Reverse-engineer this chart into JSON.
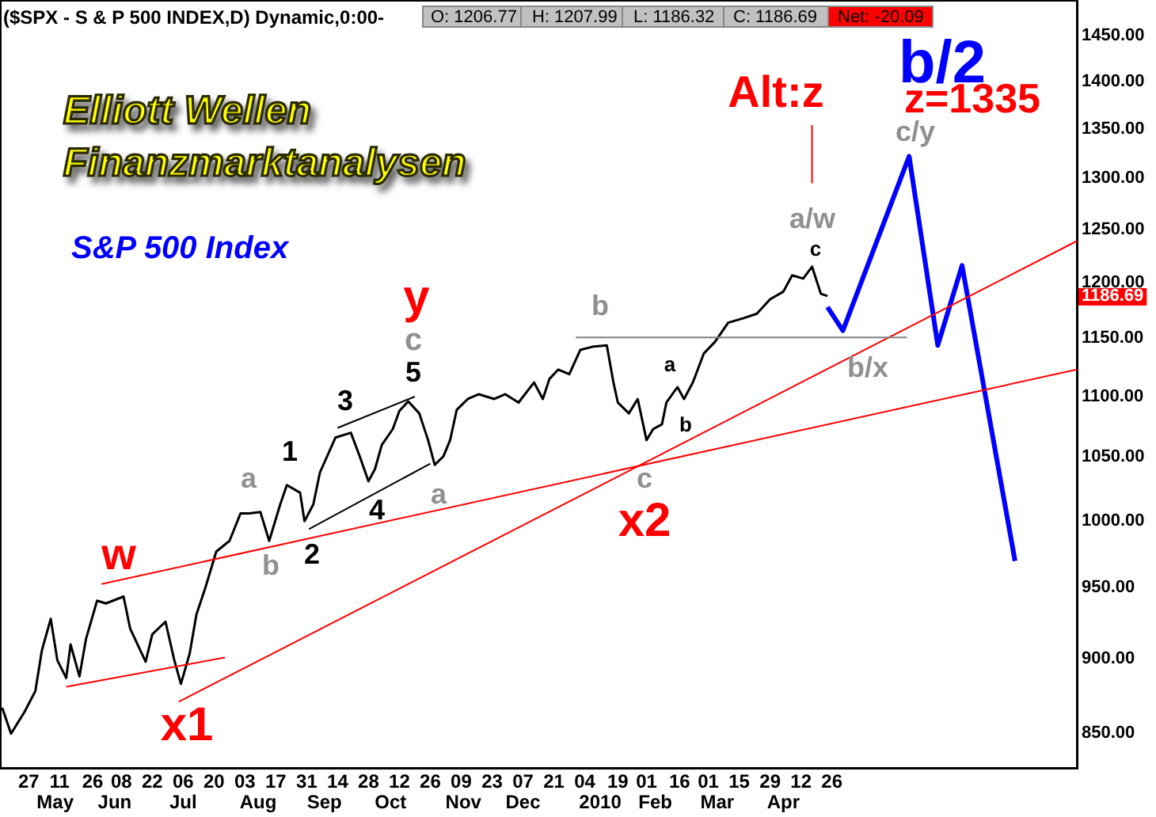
{
  "chart_data": {
    "type": "line",
    "title": "($SPX - S & P 500 INDEX,D) Dynamic,0:00-",
    "log": "y",
    "grid": false,
    "marker": "none",
    "line_style": "solid",
    "xlim": [
      "2009-04-14",
      "2010-08-15"
    ],
    "ylim": [
      827,
      1489
    ],
    "yticks": [
      {
        "value": 850,
        "label": "850.00"
      },
      {
        "value": 900,
        "label": "900.00"
      },
      {
        "value": 950,
        "label": "950.00"
      },
      {
        "value": 1000,
        "label": "1000.00"
      },
      {
        "value": 1050,
        "label": "1050.00"
      },
      {
        "value": 1100,
        "label": "1100.00"
      },
      {
        "value": 1150,
        "label": "1150.00"
      },
      {
        "value": 1200,
        "label": "1200.00"
      },
      {
        "value": 1250,
        "label": "1250.00"
      },
      {
        "value": 1300,
        "label": "1300.00"
      },
      {
        "value": 1350,
        "label": "1350.00"
      },
      {
        "value": 1400,
        "label": "1400.00"
      },
      {
        "value": 1450,
        "label": "1450.00"
      }
    ],
    "xticks": [
      {
        "value": "2009-04-27",
        "label": "27"
      },
      {
        "value": "2009-05-11",
        "label": "11"
      },
      {
        "value": "2009-05-26",
        "label": "26"
      },
      {
        "value": "2009-06-08",
        "label": "08"
      },
      {
        "value": "2009-06-22",
        "label": "22"
      },
      {
        "value": "2009-07-06",
        "label": "06"
      },
      {
        "value": "2009-07-20",
        "label": "20"
      },
      {
        "value": "2009-08-03",
        "label": "03"
      },
      {
        "value": "2009-08-17",
        "label": "17"
      },
      {
        "value": "2009-08-31",
        "label": "31"
      },
      {
        "value": "2009-09-14",
        "label": "14"
      },
      {
        "value": "2009-09-28",
        "label": "28"
      },
      {
        "value": "2009-10-12",
        "label": "12"
      },
      {
        "value": "2009-10-26",
        "label": "26"
      },
      {
        "value": "2009-11-09",
        "label": "09"
      },
      {
        "value": "2009-11-23",
        "label": "23"
      },
      {
        "value": "2009-12-07",
        "label": "07"
      },
      {
        "value": "2009-12-21",
        "label": "21"
      },
      {
        "value": "2010-01-04",
        "label": "04"
      },
      {
        "value": "2010-01-19",
        "label": "19"
      },
      {
        "value": "2010-02-01",
        "label": "01"
      },
      {
        "value": "2010-02-16",
        "label": "16"
      },
      {
        "value": "2010-03-01",
        "label": "01"
      },
      {
        "value": "2010-03-15",
        "label": "15"
      },
      {
        "value": "2010-03-29",
        "label": "29"
      },
      {
        "value": "2010-04-12",
        "label": "12"
      },
      {
        "value": "2010-04-26",
        "label": "26"
      }
    ],
    "x2lim": [
      "2009-04-14",
      "2010-08-15"
    ],
    "x2ticks": [
      {
        "value": "2009-05-09",
        "label": "May"
      },
      {
        "value": "2009-06-05",
        "label": "Jun"
      },
      {
        "value": "2009-07-06",
        "label": "Jul"
      },
      {
        "value": "2009-08-09",
        "label": "Aug"
      },
      {
        "value": "2009-09-08",
        "label": "Sep"
      },
      {
        "value": "2009-10-08",
        "label": "Oct"
      },
      {
        "value": "2009-11-10",
        "label": "Nov"
      },
      {
        "value": "2009-12-07",
        "label": "Dec"
      },
      {
        "value": "2010-01-11",
        "label": "2010"
      },
      {
        "value": "2010-02-05",
        "label": "Feb"
      },
      {
        "value": "2010-03-05",
        "label": "Mar"
      },
      {
        "value": "2010-04-04",
        "label": "Apr"
      }
    ],
    "series": [
      {
        "color": "#000000",
        "x": [
          "2009-04-15",
          "2009-04-19",
          "2009-04-25",
          "2009-04-30",
          "2009-05-03",
          "2009-05-07",
          "2009-05-10",
          "2009-05-14",
          "2009-05-16",
          "2009-05-20",
          "2009-05-23",
          "2009-05-28",
          "2009-06-01",
          "2009-06-09",
          "2009-06-12",
          "2009-06-19",
          "2009-06-22",
          "2009-06-28",
          "2009-07-02",
          "2009-07-05",
          "2009-07-09",
          "2009-07-12",
          "2009-07-16",
          "2009-07-21",
          "2009-07-27",
          "2009-08-01",
          "2009-08-05",
          "2009-08-10",
          "2009-08-14",
          "2009-08-19",
          "2009-08-22",
          "2009-08-28",
          "2009-08-30",
          "2009-09-03",
          "2009-09-06",
          "2009-09-13",
          "2009-09-20",
          "2009-09-24",
          "2009-09-28",
          "2009-10-01",
          "2009-10-04",
          "2009-10-09",
          "2009-10-12",
          "2009-10-16",
          "2009-10-21",
          "2009-10-25",
          "2009-10-28",
          "2009-11-01",
          "2009-11-04",
          "2009-11-07",
          "2009-11-12",
          "2009-11-17",
          "2009-11-24",
          "2009-11-29",
          "2009-12-05",
          "2009-12-12",
          "2009-12-16",
          "2009-12-19",
          "2009-12-23",
          "2009-12-28",
          "2010-01-02",
          "2010-01-08",
          "2010-01-14",
          "2010-01-17",
          "2010-01-19",
          "2010-01-24",
          "2010-01-28",
          "2010-02-01",
          "2010-02-04",
          "2010-02-08",
          "2010-02-10",
          "2010-02-15",
          "2010-02-18",
          "2010-02-22",
          "2010-02-27",
          "2010-03-04",
          "2010-03-10",
          "2010-03-17",
          "2010-03-23",
          "2010-03-29",
          "2010-04-04",
          "2010-04-08",
          "2010-04-13",
          "2010-04-17",
          "2010-04-21",
          "2010-04-24"
        ],
        "values": [
          866,
          849,
          863,
          877,
          905,
          927,
          898,
          886,
          909,
          887,
          913,
          940,
          938,
          943,
          920,
          897,
          916,
          925,
          898,
          882,
          903,
          930,
          949,
          976,
          984,
          1005,
          1005,
          1006,
          984,
          1012,
          1027,
          1021,
          999,
          1012,
          1037,
          1065,
          1069,
          1050,
          1030,
          1040,
          1059,
          1072,
          1087,
          1095,
          1085,
          1063,
          1043,
          1050,
          1063,
          1088,
          1097,
          1101,
          1097,
          1101,
          1094,
          1111,
          1097,
          1114,
          1122,
          1118,
          1139,
          1142,
          1143,
          1111,
          1094,
          1085,
          1097,
          1063,
          1072,
          1076,
          1094,
          1107,
          1097,
          1111,
          1136,
          1146,
          1163,
          1167,
          1171,
          1184,
          1191,
          1206,
          1203,
          1214,
          1189,
          1187
        ]
      },
      {
        "color": "#0000ff",
        "x": [
          "2010-04-24",
          "2010-05-01",
          "2010-05-31",
          "2010-06-13",
          "2010-06-24",
          "2010-07-18"
        ],
        "values": [
          1177,
          1156,
          1321,
          1143,
          1215,
          969
        ]
      },
      {
        "color": "#ff0000",
        "x": [
          "2009-07-04",
          "2010-08-15"
        ],
        "values": [
          870,
          1238
        ]
      },
      {
        "color": "#ff0000",
        "x": [
          "2009-05-30",
          "2010-08-15"
        ],
        "values": [
          952,
          1122
        ]
      },
      {
        "color": "#ff0000",
        "x": [
          "2009-05-14",
          "2009-07-25"
        ],
        "values": [
          880,
          900
        ]
      },
      {
        "color": "#000000",
        "x": [
          "2009-09-14",
          "2009-10-19"
        ],
        "values": [
          1073,
          1099
        ]
      },
      {
        "color": "#000000",
        "x": [
          "2009-09-01",
          "2009-10-26"
        ],
        "values": [
          993,
          1044
        ]
      },
      {
        "color": "#808080",
        "x": [
          "2009-12-31",
          "2010-05-30"
        ],
        "values": [
          1150,
          1150
        ]
      },
      {
        "color": "#ff0000",
        "x": [
          "2010-04-17",
          "2010-04-17"
        ],
        "values": [
          1353,
          1294
        ]
      }
    ],
    "annotations": [
      "Elliott Wellen",
      "Finanzmarktanalysen",
      "S&P 500 Index",
      "O: 1206.77",
      "H: 1207.99",
      "L: 1186.32",
      "C: 1186.69",
      "Net: -20.09",
      "1186.69",
      "w",
      "x1",
      "y",
      "c",
      "5",
      "3",
      "1",
      "a",
      "b",
      "2",
      "4",
      "a",
      "b",
      "a",
      "b",
      "c",
      "x2",
      "c",
      "a/w",
      "b/x",
      "c/y",
      "Alt:z",
      "b/2",
      "z=1335"
    ]
  }
}
